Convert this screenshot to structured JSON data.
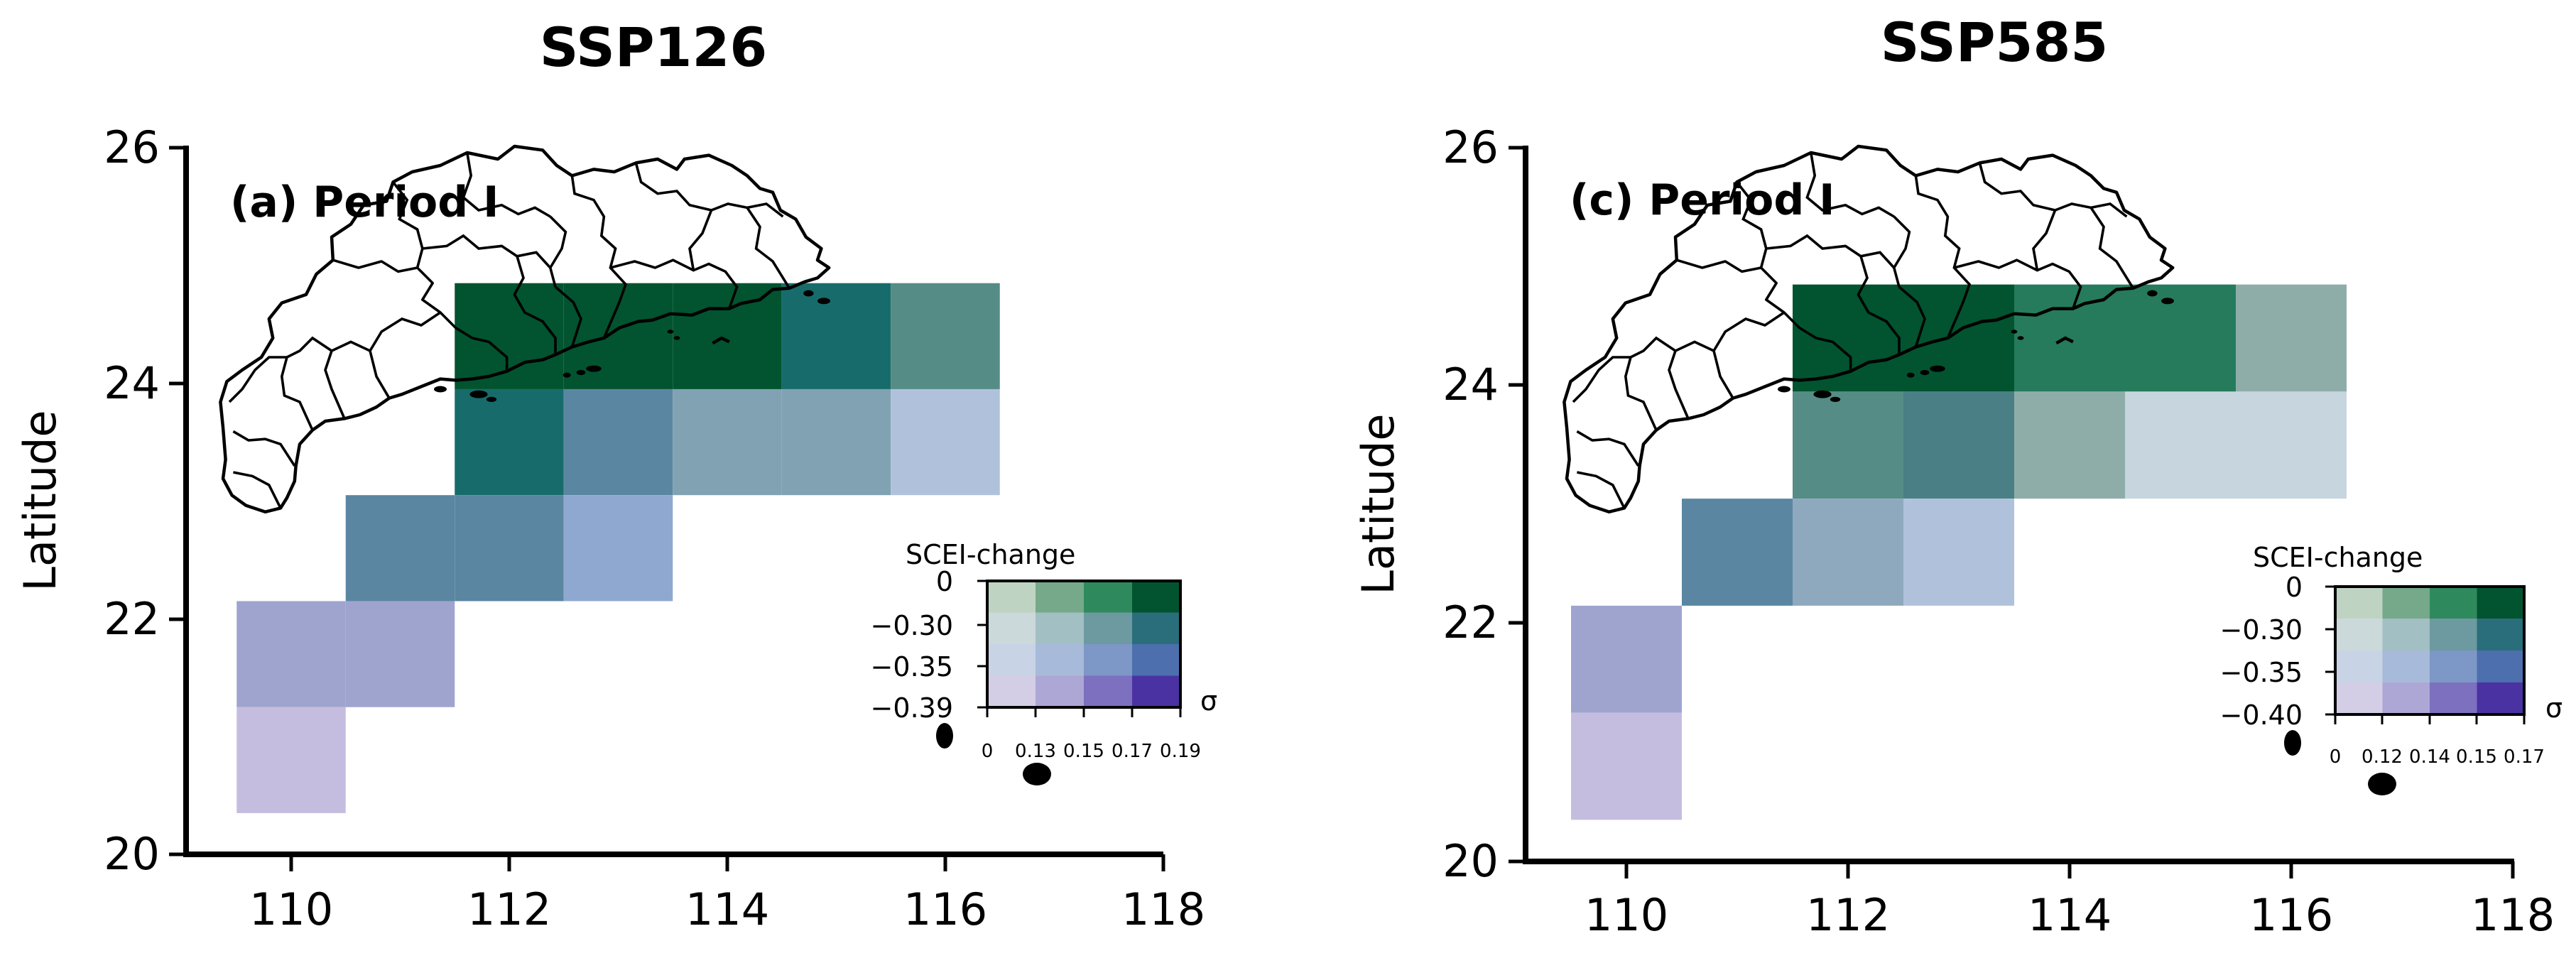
{
  "figure": {
    "panels": [
      {
        "column_title": "SSP126",
        "panel_label": "(a) Period I",
        "ylabel": "Latitude",
        "x_ticks": [
          "110",
          "112",
          "114",
          "116",
          "118"
        ],
        "y_ticks": [
          "20",
          "22",
          "24",
          "26"
        ],
        "legend": {
          "title": "SCEI-change",
          "sigma_label": "σ",
          "y_ticks": [
            "0",
            "−0.30",
            "−0.35",
            "−0.39"
          ],
          "x_ticks": [
            "0",
            "0.13",
            "0.15",
            "0.17",
            "0.19"
          ]
        },
        "cells": [
          {
            "lon": 112.0,
            "lat": 24.4,
            "color": "#01542f"
          },
          {
            "lon": 113.0,
            "lat": 24.4,
            "color": "#01542f"
          },
          {
            "lon": 114.0,
            "lat": 24.4,
            "color": "#01542f"
          },
          {
            "lon": 115.0,
            "lat": 24.4,
            "color": "#176c6b"
          },
          {
            "lon": 116.0,
            "lat": 24.4,
            "color": "#558c86"
          },
          {
            "lon": 112.0,
            "lat": 23.5,
            "color": "#176c6b"
          },
          {
            "lon": 113.0,
            "lat": 23.5,
            "color": "#5a86a2"
          },
          {
            "lon": 114.0,
            "lat": 23.5,
            "color": "#80a2b2"
          },
          {
            "lon": 115.0,
            "lat": 23.5,
            "color": "#80a2b2"
          },
          {
            "lon": 116.0,
            "lat": 23.5,
            "color": "#b0c2db"
          },
          {
            "lon": 111.0,
            "lat": 22.6,
            "color": "#5a86a2"
          },
          {
            "lon": 112.0,
            "lat": 22.6,
            "color": "#5a86a2"
          },
          {
            "lon": 113.0,
            "lat": 22.6,
            "color": "#8fa8d0"
          },
          {
            "lon": 110.0,
            "lat": 21.7,
            "color": "#9ea4ce"
          },
          {
            "lon": 111.0,
            "lat": 21.7,
            "color": "#9ea4ce"
          },
          {
            "lon": 110.0,
            "lat": 20.8,
            "color": "#c5bddf"
          }
        ]
      },
      {
        "column_title": "SSP585",
        "panel_label": "(c) Period I",
        "ylabel": "Latitude",
        "x_ticks": [
          "110",
          "112",
          "114",
          "116",
          "118"
        ],
        "y_ticks": [
          "20",
          "22",
          "24",
          "26"
        ],
        "legend": {
          "title": "SCEI-change",
          "sigma_label": "σ",
          "y_ticks": [
            "0",
            "−0.30",
            "−0.35",
            "−0.40"
          ],
          "x_ticks": [
            "0",
            "0.12",
            "0.14",
            "0.15",
            "0.17"
          ]
        },
        "cells": [
          {
            "lon": 112.0,
            "lat": 24.4,
            "color": "#01542f"
          },
          {
            "lon": 113.0,
            "lat": 24.4,
            "color": "#01542f"
          },
          {
            "lon": 114.0,
            "lat": 24.4,
            "color": "#267b5c"
          },
          {
            "lon": 115.0,
            "lat": 24.4,
            "color": "#267b5c"
          },
          {
            "lon": 116.0,
            "lat": 24.4,
            "color": "#8eada9"
          },
          {
            "lon": 112.0,
            "lat": 23.5,
            "color": "#558c86"
          },
          {
            "lon": 113.0,
            "lat": 23.5,
            "color": "#4a7f86"
          },
          {
            "lon": 114.0,
            "lat": 23.5,
            "color": "#8eada9"
          },
          {
            "lon": 115.0,
            "lat": 23.5,
            "color": "#c7d6de"
          },
          {
            "lon": 116.0,
            "lat": 23.5,
            "color": "#c7d6de"
          },
          {
            "lon": 111.0,
            "lat": 22.6,
            "color": "#5a86a2"
          },
          {
            "lon": 112.0,
            "lat": 22.6,
            "color": "#8ea9bd"
          },
          {
            "lon": 113.0,
            "lat": 22.6,
            "color": "#b0c2db"
          },
          {
            "lon": 110.0,
            "lat": 21.7,
            "color": "#9ea4ce"
          },
          {
            "lon": 110.0,
            "lat": 20.8,
            "color": "#c5bddf"
          }
        ]
      }
    ],
    "bivariate_palette": [
      [
        "#bfd3c3",
        "#75a98a",
        "#2e8a5d",
        "#01542f"
      ],
      [
        "#cbd9db",
        "#a2bfc4",
        "#6c9aa0",
        "#2a6e7b"
      ],
      [
        "#c8d3e6",
        "#a8bad9",
        "#7d97c6",
        "#4d6fae"
      ],
      [
        "#d3cde6",
        "#ada7d6",
        "#7c70bf",
        "#4b32a3"
      ]
    ],
    "colors": {
      "axis": "#000000",
      "boundary": "#000000",
      "background": "#ffffff"
    }
  }
}
